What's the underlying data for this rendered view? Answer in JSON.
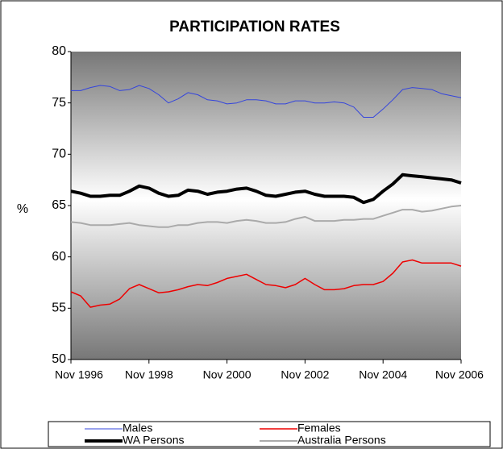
{
  "chart_data": {
    "type": "line",
    "title": "PARTICIPATION RATES",
    "y_label": "%",
    "categories": [
      "Nov 1996",
      null,
      null,
      null,
      null,
      null,
      null,
      null,
      "Nov 1998",
      null,
      null,
      null,
      null,
      null,
      null,
      null,
      "Nov 2000",
      null,
      null,
      null,
      null,
      null,
      null,
      null,
      "Nov 2002",
      null,
      null,
      null,
      null,
      null,
      null,
      null,
      "Nov 2004",
      null,
      null,
      null,
      null,
      null,
      null,
      null,
      "Nov 2006"
    ],
    "ylim": [
      50,
      80
    ],
    "yticks": [
      50,
      55,
      60,
      65,
      70,
      75,
      80
    ],
    "grid": false,
    "legend": "bottom",
    "series": [
      {
        "name": "Males",
        "color": "#3344dd",
        "values": [
          76.2,
          76.2,
          76.5,
          76.7,
          76.6,
          76.2,
          76.3,
          76.7,
          76.4,
          75.8,
          75.0,
          75.4,
          76.0,
          75.8,
          75.3,
          75.2,
          74.9,
          75.0,
          75.3,
          75.3,
          75.2,
          74.9,
          74.9,
          75.2,
          75.2,
          75.0,
          75.0,
          75.1,
          75.0,
          74.6,
          73.6,
          73.6,
          74.4,
          75.3,
          76.3,
          76.5,
          76.4,
          76.3,
          75.9,
          75.7,
          75.5
        ]
      },
      {
        "name": "Females",
        "color": "#ee0000",
        "values": [
          56.6,
          56.2,
          55.1,
          55.3,
          55.4,
          55.9,
          56.9,
          57.3,
          56.9,
          56.5,
          56.6,
          56.8,
          57.1,
          57.3,
          57.2,
          57.5,
          57.9,
          58.1,
          58.3,
          57.8,
          57.3,
          57.2,
          57.0,
          57.3,
          57.9,
          57.3,
          56.8,
          56.8,
          56.9,
          57.2,
          57.3,
          57.3,
          57.6,
          58.4,
          59.5,
          59.7,
          59.4,
          59.4,
          59.4,
          59.4,
          59.1
        ]
      },
      {
        "name": "WA Persons",
        "color": "#000000",
        "values": [
          66.4,
          66.2,
          65.9,
          65.9,
          66.0,
          66.0,
          66.4,
          66.9,
          66.7,
          66.2,
          65.9,
          66.0,
          66.5,
          66.4,
          66.1,
          66.3,
          66.4,
          66.6,
          66.7,
          66.4,
          66.0,
          65.9,
          66.1,
          66.3,
          66.4,
          66.1,
          65.9,
          65.9,
          65.9,
          65.8,
          65.3,
          65.6,
          66.4,
          67.1,
          68.0,
          67.9,
          67.8,
          67.7,
          67.6,
          67.5,
          67.2
        ]
      },
      {
        "name": "Australia Persons",
        "color": "#aaaaaa",
        "values": [
          63.4,
          63.3,
          63.1,
          63.1,
          63.1,
          63.2,
          63.3,
          63.1,
          63.0,
          62.9,
          62.9,
          63.1,
          63.1,
          63.3,
          63.4,
          63.4,
          63.3,
          63.5,
          63.6,
          63.5,
          63.3,
          63.3,
          63.4,
          63.7,
          63.9,
          63.5,
          63.5,
          63.5,
          63.6,
          63.6,
          63.7,
          63.7,
          64.0,
          64.3,
          64.6,
          64.6,
          64.4,
          64.5,
          64.7,
          64.9,
          65.0
        ]
      }
    ]
  }
}
